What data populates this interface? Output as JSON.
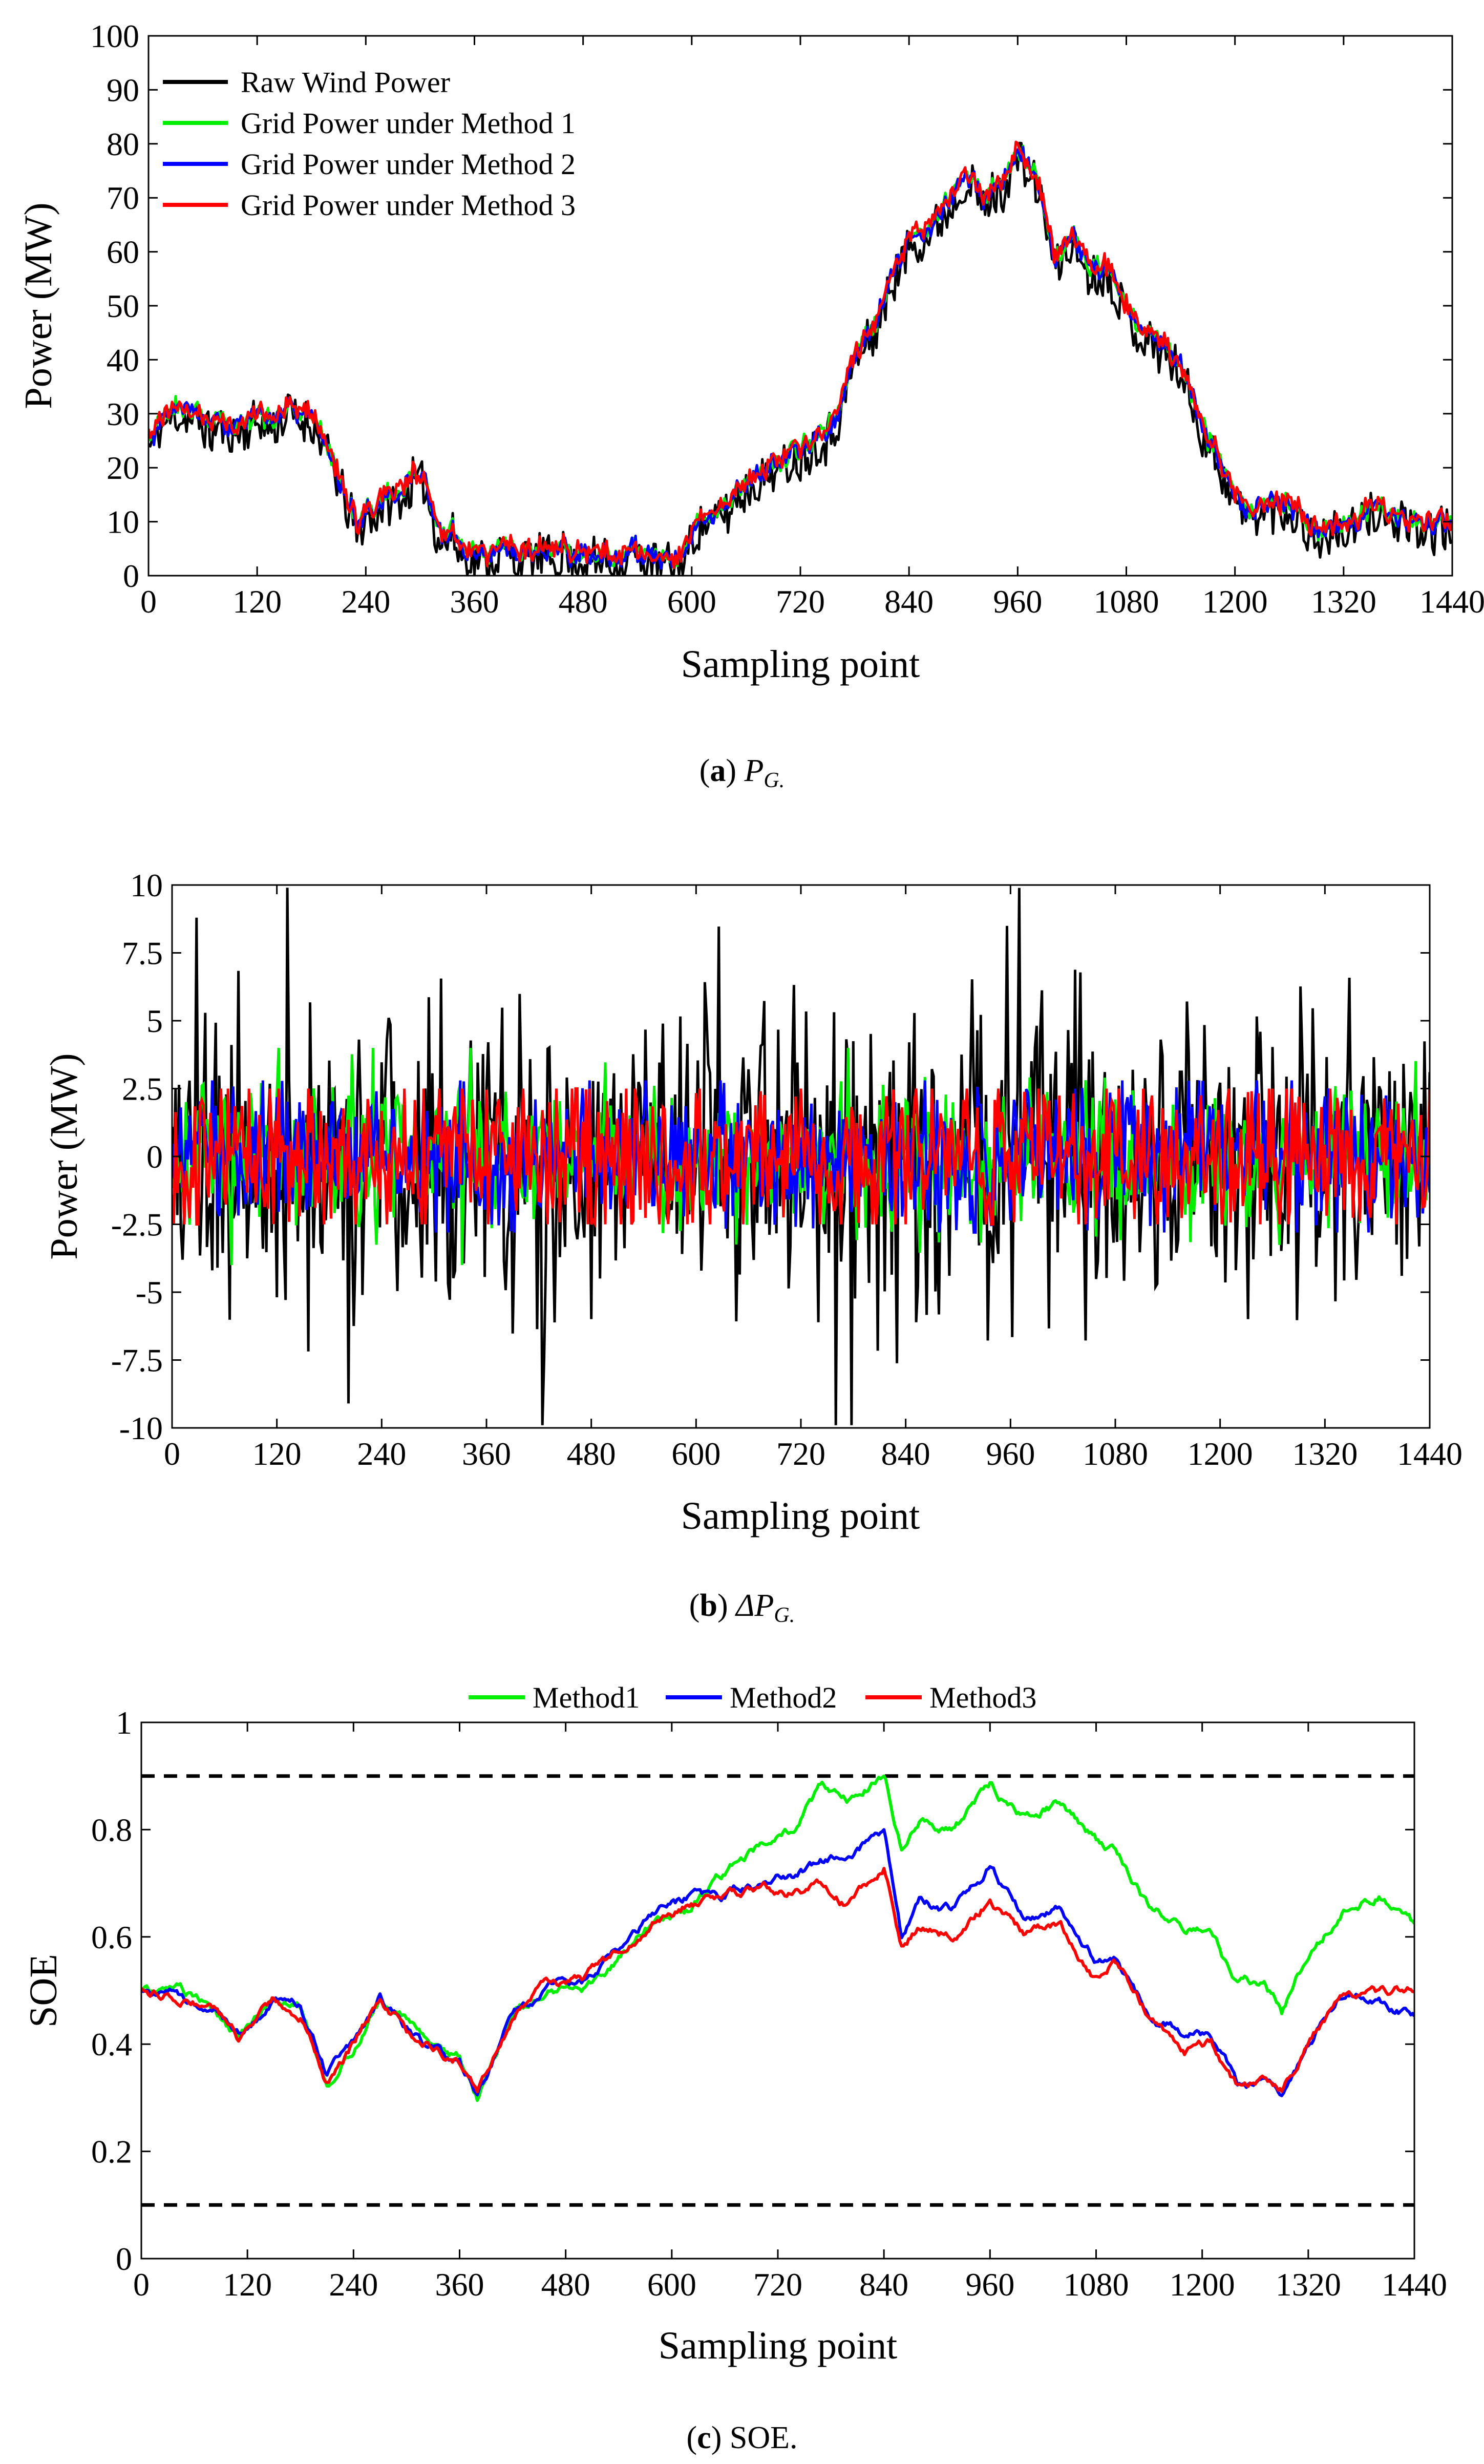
{
  "chart_data": [
    {
      "id": "a",
      "type": "line",
      "xlabel": "Sampling point",
      "ylabel": "Power (MW)",
      "xlim": [
        0,
        1440
      ],
      "ylim": [
        0,
        100
      ],
      "xticks": [
        0,
        120,
        240,
        360,
        480,
        600,
        720,
        840,
        960,
        1080,
        1200,
        1320,
        1440
      ],
      "yticks": [
        0,
        10,
        20,
        30,
        40,
        50,
        60,
        70,
        80,
        90,
        100
      ],
      "caption": {
        "letter": "a",
        "text": "P",
        "sub": "G."
      },
      "legend_position": "top-left",
      "anchors": {
        "x": [
          0,
          20,
          40,
          60,
          80,
          100,
          120,
          140,
          160,
          180,
          200,
          210,
          230,
          260,
          280,
          300,
          320,
          350,
          380,
          420,
          460,
          500,
          540,
          580,
          620,
          660,
          700,
          740,
          760,
          780,
          800,
          820,
          840,
          860,
          880,
          900,
          920,
          940,
          960,
          980,
          1000,
          1020,
          1040,
          1060,
          1080,
          1100,
          1120,
          1140,
          1160,
          1180,
          1200,
          1220,
          1240,
          1260,
          1280,
          1300,
          1320,
          1340,
          1360,
          1380,
          1400,
          1420,
          1440
        ],
        "y": [
          25,
          31,
          30,
          29,
          28,
          27,
          28,
          29,
          31,
          27,
          23,
          18,
          10,
          14,
          16,
          20,
          10,
          5,
          4,
          4,
          4,
          3,
          3,
          4,
          10,
          17,
          22,
          27,
          30,
          40,
          45,
          55,
          62,
          65,
          68,
          74,
          70,
          72,
          78,
          74,
          60,
          63,
          55,
          57,
          50,
          45,
          42,
          38,
          30,
          22,
          14,
          12,
          13,
          14,
          10,
          8,
          9,
          10,
          13,
          10,
          10,
          9,
          10
        ]
      },
      "series": [
        {
          "name": "Raw Wind Power",
          "color": "#000000",
          "noise": 4.0,
          "offset": -1.2,
          "seed": 11
        },
        {
          "name": "Grid Power under Method 1",
          "color": "#00ee00",
          "noise": 1.6,
          "offset": 0.4,
          "seed": 21
        },
        {
          "name": "Grid Power under Method 2",
          "color": "#0000ff",
          "noise": 1.6,
          "offset": 0.2,
          "seed": 31
        },
        {
          "name": "Grid Power under Method 3",
          "color": "#ff0000",
          "noise": 1.6,
          "offset": 0.6,
          "seed": 41
        }
      ]
    },
    {
      "id": "b",
      "type": "line",
      "xlabel": "Sampling point",
      "ylabel": "Power (MW)",
      "xlim": [
        0,
        1440
      ],
      "ylim": [
        -10,
        10
      ],
      "xticks": [
        0,
        120,
        240,
        360,
        480,
        600,
        720,
        840,
        960,
        1080,
        1200,
        1320,
        1440
      ],
      "yticks": [
        10,
        7.5,
        5,
        2.5,
        0,
        -2.5,
        -5,
        -7.5,
        -10
      ],
      "ytick_labels": [
        "10",
        "7.5",
        "5",
        "2.5",
        "0",
        "-2.5",
        "-5",
        "-7.5",
        "-10"
      ],
      "caption": {
        "letter": "b",
        "text": "ΔP",
        "sub": "G."
      },
      "series": [
        {
          "name": "Raw Wind Power",
          "color": "#000000",
          "amplitude": 3.0,
          "clip": 9.9,
          "seed": 5
        },
        {
          "name": "Grid Power under Method 1",
          "color": "#00ee00",
          "amplitude": 1.3,
          "clip": 4.0,
          "seed": 7
        },
        {
          "name": "Grid Power under Method 2",
          "color": "#0000ff",
          "amplitude": 1.3,
          "clip": 2.8,
          "seed": 9
        },
        {
          "name": "Grid Power under Method 3",
          "color": "#ff0000",
          "amplitude": 1.4,
          "clip": 2.5,
          "seed": 13
        }
      ]
    },
    {
      "id": "c",
      "type": "line",
      "xlabel": "Sampling point",
      "ylabel": "SOE",
      "xlim": [
        0,
        1440
      ],
      "ylim": [
        0,
        1
      ],
      "xticks": [
        0,
        120,
        240,
        360,
        480,
        600,
        720,
        840,
        960,
        1080,
        1200,
        1320,
        1440
      ],
      "yticks": [
        0,
        0.2,
        0.4,
        0.6,
        0.8,
        1
      ],
      "ytick_labels": [
        "0",
        "0.2",
        "0.4",
        "0.6",
        "0.8",
        "1"
      ],
      "caption": {
        "letter": "c",
        "text": "SOE."
      },
      "legend_position": "top-center",
      "reference_lines": [
        0.9,
        0.1
      ],
      "anchors_x": [
        0,
        40,
        80,
        110,
        150,
        180,
        210,
        240,
        270,
        300,
        330,
        360,
        380,
        420,
        460,
        500,
        540,
        580,
        620,
        660,
        700,
        740,
        770,
        800,
        840,
        860,
        880,
        920,
        960,
        1000,
        1040,
        1080,
        1100,
        1140,
        1180,
        1210,
        1240,
        1270,
        1290,
        1320,
        1360,
        1400,
        1440
      ],
      "series": [
        {
          "name": "Method1",
          "color": "#00ee00",
          "seed": 61,
          "y": [
            0.5,
            0.5,
            0.47,
            0.41,
            0.48,
            0.47,
            0.33,
            0.39,
            0.48,
            0.44,
            0.39,
            0.37,
            0.29,
            0.46,
            0.5,
            0.5,
            0.56,
            0.63,
            0.65,
            0.72,
            0.77,
            0.8,
            0.88,
            0.86,
            0.9,
            0.76,
            0.82,
            0.8,
            0.88,
            0.82,
            0.85,
            0.78,
            0.76,
            0.65,
            0.62,
            0.61,
            0.5,
            0.52,
            0.46,
            0.57,
            0.65,
            0.68,
            0.62
          ]
        },
        {
          "name": "Method2",
          "color": "#0000ff",
          "seed": 71,
          "y": [
            0.5,
            0.49,
            0.47,
            0.42,
            0.48,
            0.47,
            0.34,
            0.4,
            0.49,
            0.43,
            0.39,
            0.36,
            0.3,
            0.45,
            0.51,
            0.52,
            0.58,
            0.64,
            0.67,
            0.68,
            0.7,
            0.72,
            0.74,
            0.76,
            0.79,
            0.6,
            0.66,
            0.65,
            0.73,
            0.64,
            0.65,
            0.56,
            0.56,
            0.46,
            0.42,
            0.42,
            0.33,
            0.32,
            0.3,
            0.4,
            0.5,
            0.48,
            0.46
          ]
        },
        {
          "name": "Method3",
          "color": "#ff0000",
          "seed": 81,
          "y": [
            0.5,
            0.49,
            0.47,
            0.41,
            0.48,
            0.46,
            0.33,
            0.4,
            0.49,
            0.43,
            0.39,
            0.37,
            0.31,
            0.45,
            0.51,
            0.52,
            0.57,
            0.63,
            0.66,
            0.68,
            0.69,
            0.68,
            0.7,
            0.66,
            0.73,
            0.58,
            0.62,
            0.6,
            0.67,
            0.6,
            0.62,
            0.52,
            0.55,
            0.45,
            0.39,
            0.4,
            0.32,
            0.33,
            0.31,
            0.4,
            0.5,
            0.49,
            0.51
          ]
        }
      ]
    }
  ]
}
